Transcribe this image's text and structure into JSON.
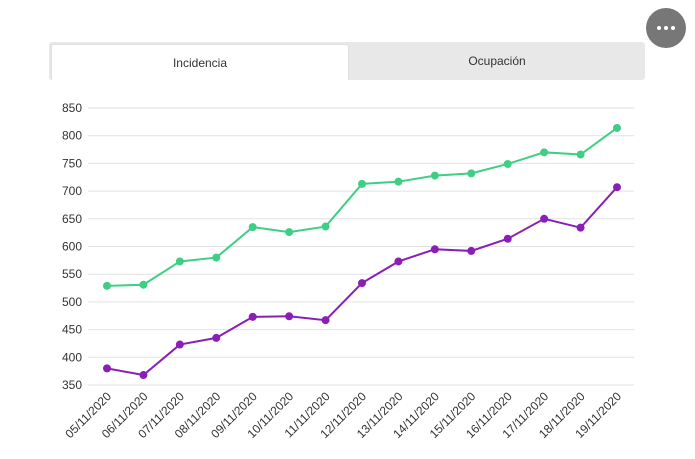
{
  "tabs": [
    {
      "label": "Incidencia",
      "active": true
    },
    {
      "label": "Ocupación",
      "active": false
    }
  ],
  "menu_icon": "more-horizontal-icon",
  "colors": {
    "series_green": "#3ecf84",
    "series_purple": "#8a1fb8",
    "grid": "#e2e2e2"
  },
  "chart_data": {
    "type": "line",
    "title": "",
    "xlabel": "",
    "ylabel": "",
    "ylim": [
      350,
      850
    ],
    "yticks": [
      350,
      400,
      450,
      500,
      550,
      600,
      650,
      700,
      750,
      800,
      850
    ],
    "grid": true,
    "categories": [
      "05/11/2020",
      "06/11/2020",
      "07/11/2020",
      "08/11/2020",
      "09/11/2020",
      "10/11/2020",
      "11/11/2020",
      "12/11/2020",
      "13/11/2020",
      "14/11/2020",
      "15/11/2020",
      "16/11/2020",
      "17/11/2020",
      "18/11/2020",
      "19/11/2020"
    ],
    "series": [
      {
        "color": "#3ecf84",
        "values": [
          529,
          531,
          573,
          580,
          635,
          626,
          636,
          713,
          717,
          728,
          732,
          749,
          770,
          766,
          814
        ]
      },
      {
        "color": "#8a1fb8",
        "values": [
          380,
          368,
          423,
          435,
          473,
          474,
          467,
          534,
          573,
          595,
          592,
          614,
          650,
          634,
          707
        ]
      }
    ]
  }
}
